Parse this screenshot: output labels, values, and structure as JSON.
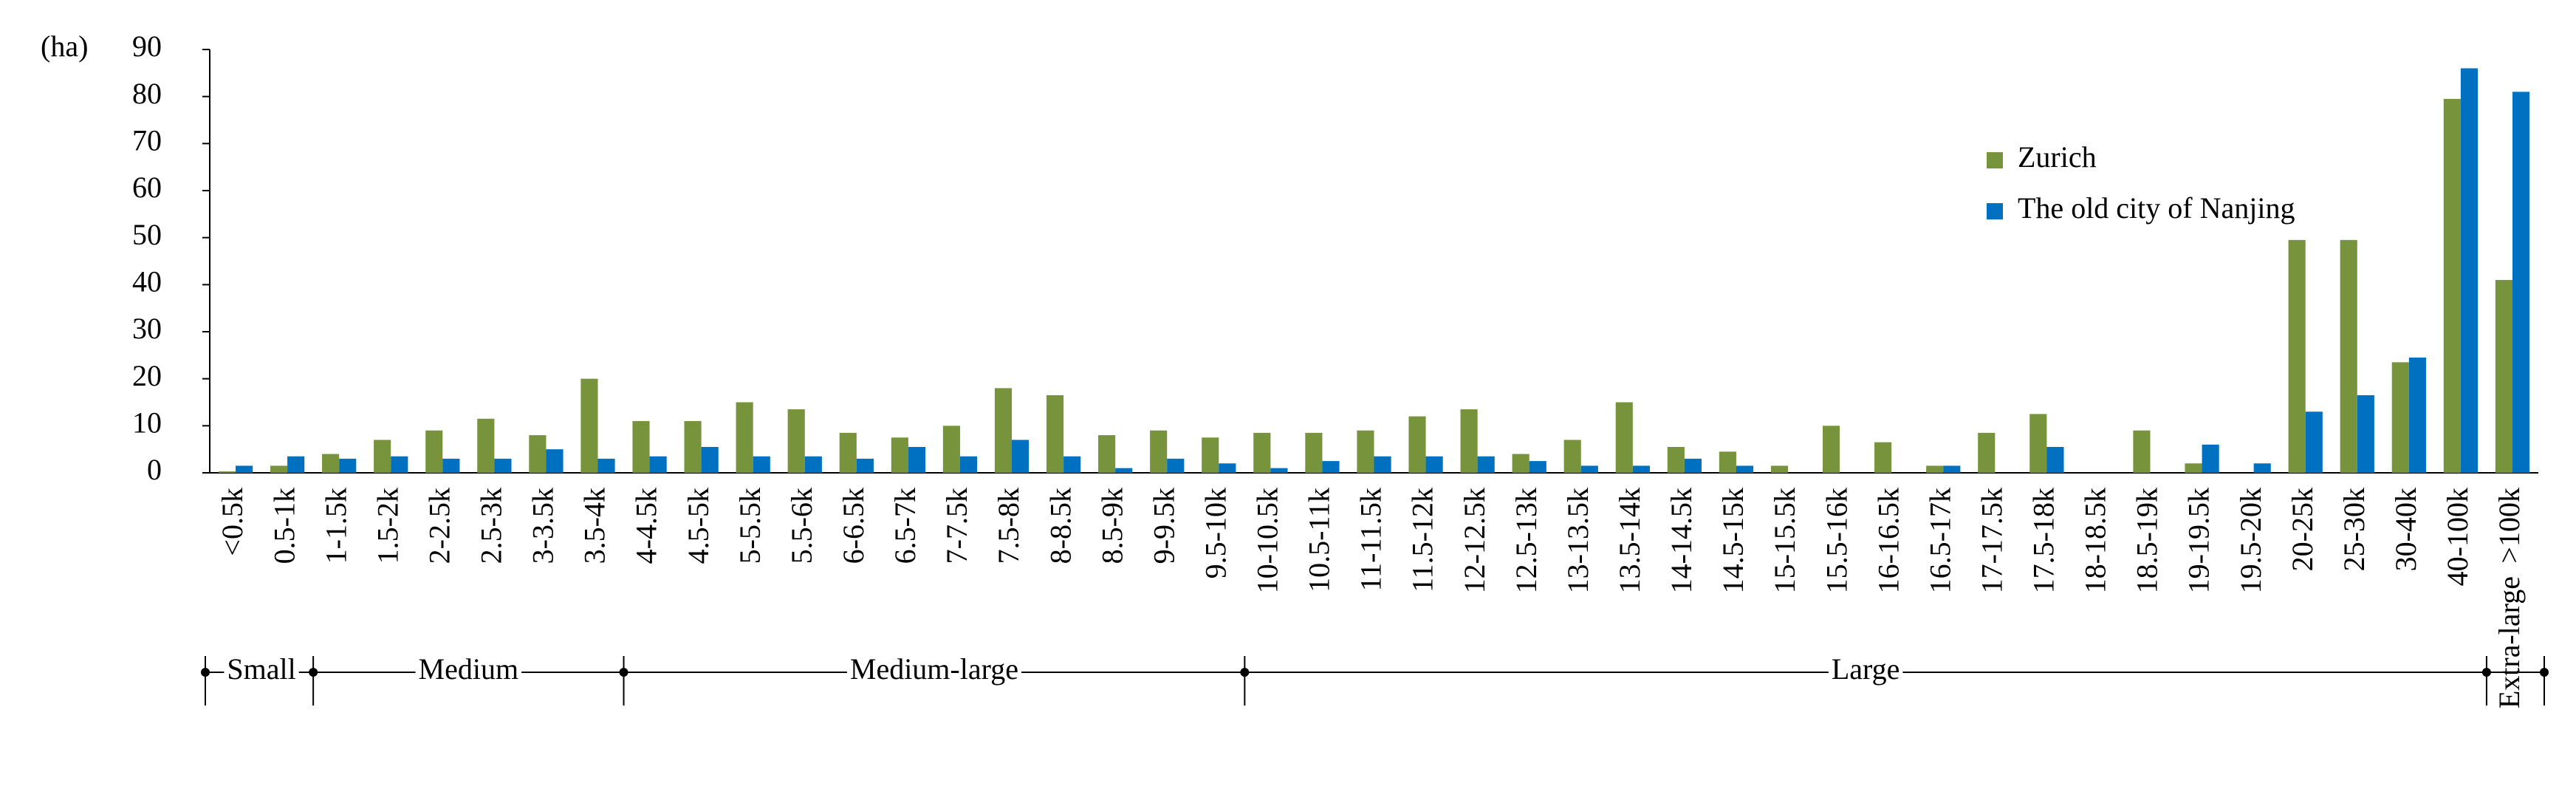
{
  "chart_data": {
    "type": "bar",
    "y_unit_label": "(ha)",
    "categories": [
      "<0.5k",
      "0.5-1k",
      "1-1.5k",
      "1.5-2k",
      "2-2.5k",
      "2.5-3k",
      "3-3.5k",
      "3.5-4k",
      "4-4.5k",
      "4.5-5k",
      "5-5.5k",
      "5.5-6k",
      "6-6.5k",
      "6.5-7k",
      "7-7.5k",
      "7.5-8k",
      "8-8.5k",
      "8.5-9k",
      "9-9.5k",
      "9.5-10k",
      "10-10.5k",
      "10.5-11k",
      "11-11.5k",
      "11.5-12k",
      "12-12.5k",
      "12.5-13k",
      "13-13.5k",
      "13.5-14k",
      "14-14.5k",
      "14.5-15k",
      "15-15.5k",
      "15.5-16k",
      "16-16.5k",
      "16.5-17k",
      "17-17.5k",
      "17.5-18k",
      "18-18.5k",
      "18.5-19k",
      "19-19.5k",
      "19.5-20k",
      "20-25k",
      "25-30k",
      "30-40k",
      "40-100k",
      ">100k"
    ],
    "series": [
      {
        "name": "Zurich",
        "color": "#77933c",
        "values": [
          0.3,
          1.5,
          4,
          7,
          9,
          11.5,
          8,
          20,
          11,
          11,
          15,
          13.5,
          8.5,
          7.5,
          10,
          18,
          16.5,
          8,
          9,
          7.5,
          8.5,
          8.5,
          9,
          12,
          13.5,
          4,
          7,
          15,
          5.5,
          4.5,
          1.5,
          10,
          6.5,
          1.5,
          8.5,
          12.5,
          0,
          9,
          2,
          0,
          49.5,
          49.5,
          23.5,
          79.5,
          41
        ]
      },
      {
        "name": "The old city of Nanjing",
        "color": "#0070c0",
        "values": [
          1.5,
          3.5,
          3,
          3.5,
          3,
          3,
          5,
          3,
          3.5,
          5.5,
          3.5,
          3.5,
          3,
          5.5,
          3.5,
          7,
          3.5,
          1,
          3,
          2,
          1,
          2.5,
          3.5,
          3.5,
          3.5,
          2.5,
          1.5,
          1.5,
          3,
          1.5,
          0,
          0,
          0,
          1.5,
          0,
          5.5,
          0,
          0,
          6,
          2,
          13,
          16.5,
          24.5,
          86,
          81
        ]
      }
    ],
    "category_groups": [
      "Small",
      "Medium",
      "Medium-large",
      "Large",
      "Extra-large"
    ],
    "ylim": [
      0,
      90
    ],
    "yticks": [
      0,
      10,
      20,
      30,
      40,
      50,
      60,
      70,
      80,
      90
    ],
    "grid": false,
    "legend": "upper right"
  }
}
